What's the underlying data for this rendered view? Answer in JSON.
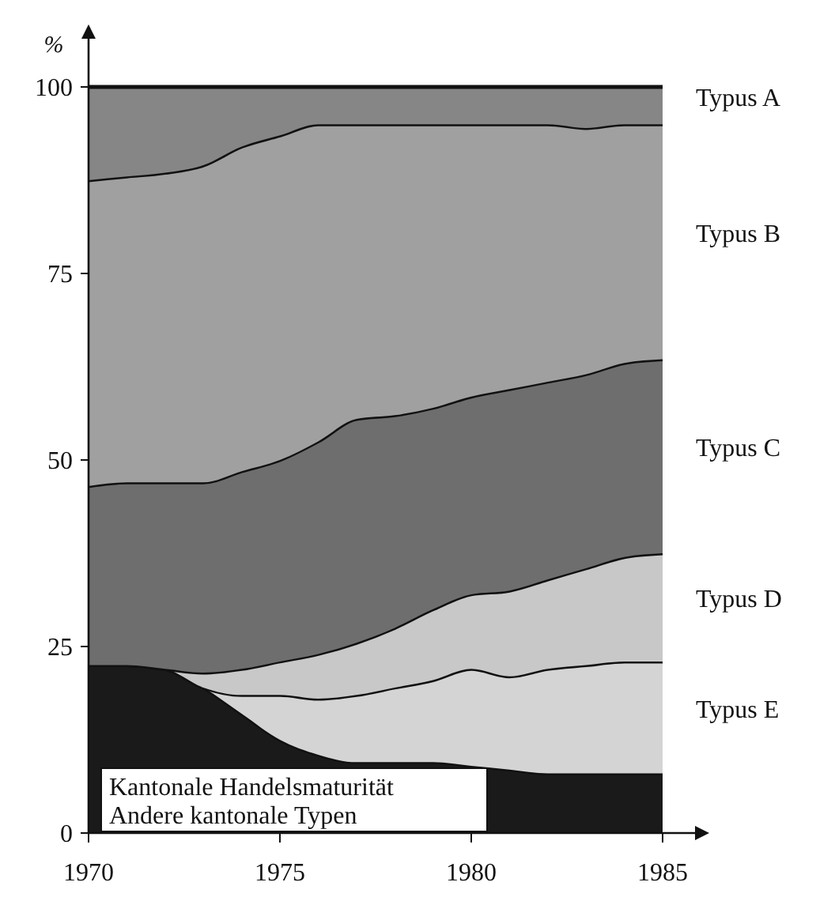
{
  "chart_data": {
    "type": "area",
    "stacked": true,
    "ylabel": "%",
    "x": [
      1970,
      1971,
      1972,
      1973,
      1974,
      1975,
      1976,
      1977,
      1978,
      1979,
      1980,
      1981,
      1982,
      1983,
      1984,
      1985
    ],
    "xlim": [
      1970,
      1985
    ],
    "xticks": [
      1970,
      1975,
      1980,
      1985
    ],
    "ylim": [
      0,
      100
    ],
    "yticks": [
      0,
      25,
      50,
      75,
      100
    ],
    "series": [
      {
        "name": "Kantonale Handelsmaturität\nAndere kantonale Typen",
        "color": "#1a1a1a",
        "values": [
          22.5,
          22.5,
          22,
          19.5,
          16,
          12.5,
          10.5,
          9.5,
          9.5,
          9.5,
          9,
          8.5,
          8,
          8,
          8,
          8
        ]
      },
      {
        "name": "Typus E",
        "color": "#d4d4d4",
        "values": [
          0,
          0,
          0,
          0,
          2.5,
          6,
          7.5,
          9,
          10,
          11,
          13,
          12.5,
          14,
          14.5,
          15,
          15
        ]
      },
      {
        "name": "Typus D",
        "color": "#c8c8c8",
        "values": [
          0,
          0,
          0,
          2,
          3.5,
          4.5,
          6,
          7,
          8,
          9.5,
          10,
          11.5,
          12,
          13,
          14,
          14.5
        ]
      },
      {
        "name": "Typus C",
        "color": "#6e6e6e",
        "values": [
          24,
          24.5,
          25,
          25.5,
          26.5,
          27,
          28.5,
          30,
          28.5,
          27,
          26.5,
          27,
          26.5,
          26,
          26,
          26
        ]
      },
      {
        "name": "Typus B",
        "color": "#a0a0a0",
        "values": [
          41,
          41,
          41.5,
          42.5,
          43.5,
          43.5,
          42.5,
          39.5,
          39,
          38,
          36.5,
          35.5,
          34.5,
          33,
          32,
          31.5
        ]
      },
      {
        "name": "Typus A",
        "color": "#868686",
        "values": [
          12.5,
          12,
          11.5,
          10.5,
          8,
          6.5,
          5,
          5,
          5,
          5,
          5,
          5,
          5,
          5.5,
          5,
          5
        ]
      }
    ]
  }
}
